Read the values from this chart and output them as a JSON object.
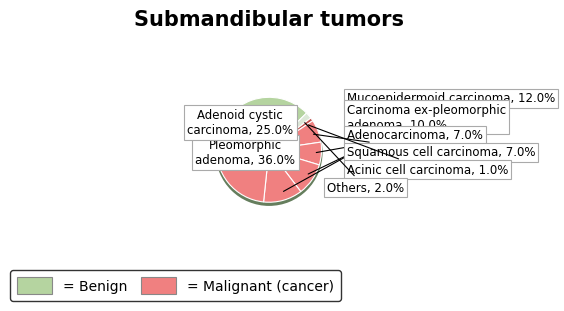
{
  "title": "Submandibular tumors",
  "slices": [
    {
      "label": "Pleomorphic\nadenoma, 36.0%",
      "value": 36.0,
      "color": "#b5d4a0",
      "is_benign": true
    },
    {
      "label": "Others, 2.0%",
      "value": 2.0,
      "color": "#c0c8b8",
      "is_benign": false
    },
    {
      "label": "Acinic cell carcinoma, 1.0%",
      "value": 1.0,
      "color": "#e87070",
      "is_benign": false
    },
    {
      "label": "Squamous cell carcinoma, 7.0%",
      "value": 7.0,
      "color": "#f08080",
      "is_benign": false
    },
    {
      "label": "Adenocarcinoma, 7.0%",
      "value": 7.0,
      "color": "#f08080",
      "is_benign": false
    },
    {
      "label": "Carcinoma ex-pleomorphic\nadenoma, 10.0%",
      "value": 10.0,
      "color": "#f08080",
      "is_benign": false
    },
    {
      "label": "Mucoepidermoid carcinoma, 12.0%",
      "value": 12.0,
      "color": "#f08080",
      "is_benign": false
    },
    {
      "label": "Adenoid cystic\ncarcinoma, 25.0%",
      "value": 25.0,
      "color": "#f08080",
      "is_benign": false
    }
  ],
  "benign_color": "#b5d4a0",
  "malignant_color": "#f08080",
  "shadow_color": "#4a6741",
  "others_color": "#dce8d8",
  "acinic_color": "#d4736e",
  "title_fontsize": 15,
  "label_fontsize": 8.5,
  "legend_fontsize": 10
}
